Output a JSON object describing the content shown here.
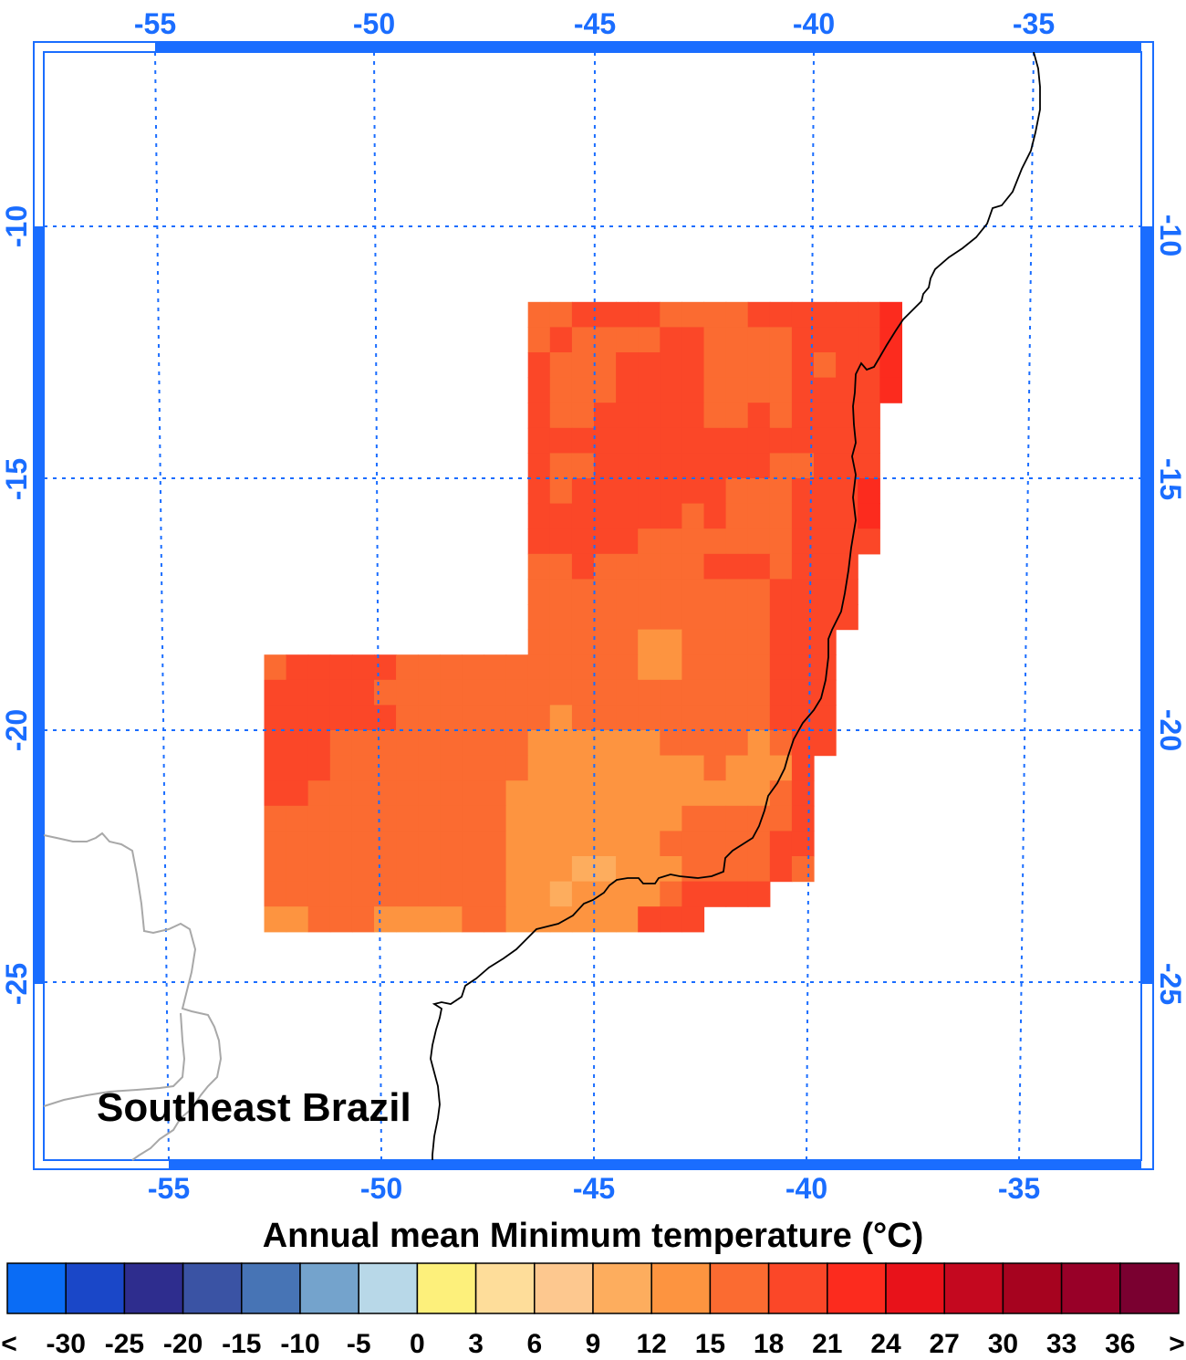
{
  "map": {
    "region_label": "Southeast Brazil",
    "top_ticks": [
      "-55",
      "-50",
      "-45",
      "-40",
      "-35"
    ],
    "bottom_ticks": [
      "-55",
      "-50",
      "-45",
      "-40",
      "-35"
    ],
    "left_ticks": [
      "-10",
      "-15",
      "-20",
      "-25"
    ],
    "right_ticks": [
      "-10",
      "-15",
      "-20",
      "-25"
    ],
    "frame_color": "#1a6dff",
    "coast_color": "#000000",
    "border_color": "#a8a8a8"
  },
  "colorbar": {
    "title": "Annual mean Minimum temperature (°C)",
    "left_end": "<",
    "right_end": ">",
    "labels": [
      "-30",
      "-25",
      "-20",
      "-15",
      "-10",
      "-5",
      "0",
      "3",
      "6",
      "9",
      "12",
      "15",
      "18",
      "21",
      "24",
      "27",
      "30",
      "33",
      "36"
    ],
    "colors": [
      "#0a6cf5",
      "#1a47c8",
      "#2e2d8e",
      "#3a53a4",
      "#4774b5",
      "#74a3cc",
      "#b8d8e8",
      "#fdf07b",
      "#fedd9a",
      "#fdc88f",
      "#fdad5e",
      "#fd9440",
      "#fb6b31",
      "#fb4728",
      "#fc2b1e",
      "#e8121a",
      "#c4081f",
      "#a6031f",
      "#980028",
      "#7a0030"
    ]
  },
  "chart_data": {
    "type": "heatmap",
    "title": "Annual mean Minimum temperature (°C)",
    "region": "Southeast Brazil",
    "cell_size_deg": 0.5,
    "levels": {
      "A": "12-15",
      "B": "15-18",
      "C": "18-21",
      "D": "21-24",
      "E": "9-12"
    },
    "grid_rows": [
      {
        "lat": -11.5,
        "lon_start": -46.5,
        "cells": "BBCCCCBBBBCCCCCCD"
      },
      {
        "lat": -12.0,
        "lon_start": -46.5,
        "cells": "BCBBBBCCBBBBCCCCD"
      },
      {
        "lat": -12.5,
        "lon_start": -46.5,
        "cells": "CBBBCCCCBBBBCBCCD"
      },
      {
        "lat": -13.0,
        "lon_start": -46.5,
        "cells": "CBBBCCCCBBBBCCCCD"
      },
      {
        "lat": -13.5,
        "lon_start": -46.5,
        "cells": "CBBCCCCCBBCBCCCC"
      },
      {
        "lat": -14.0,
        "lon_start": -46.5,
        "cells": "CCCCCCCCCCCCCCCC"
      },
      {
        "lat": -14.5,
        "lon_start": -46.5,
        "cells": "CBBCCCCCCCCBBCCC"
      },
      {
        "lat": -15.0,
        "lon_start": -46.5,
        "cells": "CBCCCCCCCBBBCCCD"
      },
      {
        "lat": -15.5,
        "lon_start": -46.5,
        "cells": "CCCCCCCBCBBBCCCD"
      },
      {
        "lat": -16.0,
        "lon_start": -46.5,
        "cells": "CCCCCBBBBBBBCCCC"
      },
      {
        "lat": -16.5,
        "lon_start": -46.5,
        "cells": "BBCBBBBBCCCBCCC"
      },
      {
        "lat": -17.0,
        "lon_start": -46.5,
        "cells": "BBBBBBBBBBBCCCC"
      },
      {
        "lat": -17.5,
        "lon_start": -46.5,
        "cells": "BBBBBBBBBBBCCCC"
      },
      {
        "lat": -18.0,
        "lon_start": -46.5,
        "cells": "BBBBBAABBBBCCC"
      },
      {
        "lat": -18.5,
        "lon_start": -52.5,
        "cells": "BCCCCCBBBBBBBBBBBAABBBBCCC"
      },
      {
        "lat": -19.0,
        "lon_start": -52.5,
        "cells": "CCCCCBBBBBBBBBBBBBBBBBBCCC"
      },
      {
        "lat": -19.5,
        "lon_start": -52.5,
        "cells": "CCCCCCBBBBBBBABBBBBBBBBCCC"
      },
      {
        "lat": -20.0,
        "lon_start": -52.5,
        "cells": "CCCBBBBBBBBBAAAAAABBBBABCC"
      },
      {
        "lat": -20.5,
        "lon_start": -52.5,
        "cells": "CCCBBBBBBBBBAAAAAAAABAAAC"
      },
      {
        "lat": -21.0,
        "lon_start": -52.5,
        "cells": "CCBBBBBBBBBAAAAAAAAAAAABC"
      },
      {
        "lat": -21.5,
        "lon_start": -52.5,
        "cells": "BBBBBBBBBBBAAAAAAAABBBBBC"
      },
      {
        "lat": -22.0,
        "lon_start": -52.5,
        "cells": "BBBBBBBBBBBAAAAAAABBBBBCC"
      },
      {
        "lat": -22.5,
        "lon_start": -52.5,
        "cells": "BBBBBBBBBBBAAAEEAAABBBBCB"
      },
      {
        "lat": -23.0,
        "lon_start": -52.5,
        "cells": "BBBBBBBBBBBAAEAAAABCCCC"
      },
      {
        "lat": -23.5,
        "lon_start": -52.5,
        "cells": "AABBBAAAABBAAAAAACCC"
      }
    ],
    "xlabel": "",
    "ylabel": "",
    "xlim": [
      -58,
      -32.5
    ],
    "ylim": [
      -28.7,
      -6.8
    ],
    "x_ticks": [
      -55,
      -50,
      -45,
      -40,
      -35
    ],
    "y_ticks": [
      -10,
      -15,
      -20,
      -25
    ]
  }
}
